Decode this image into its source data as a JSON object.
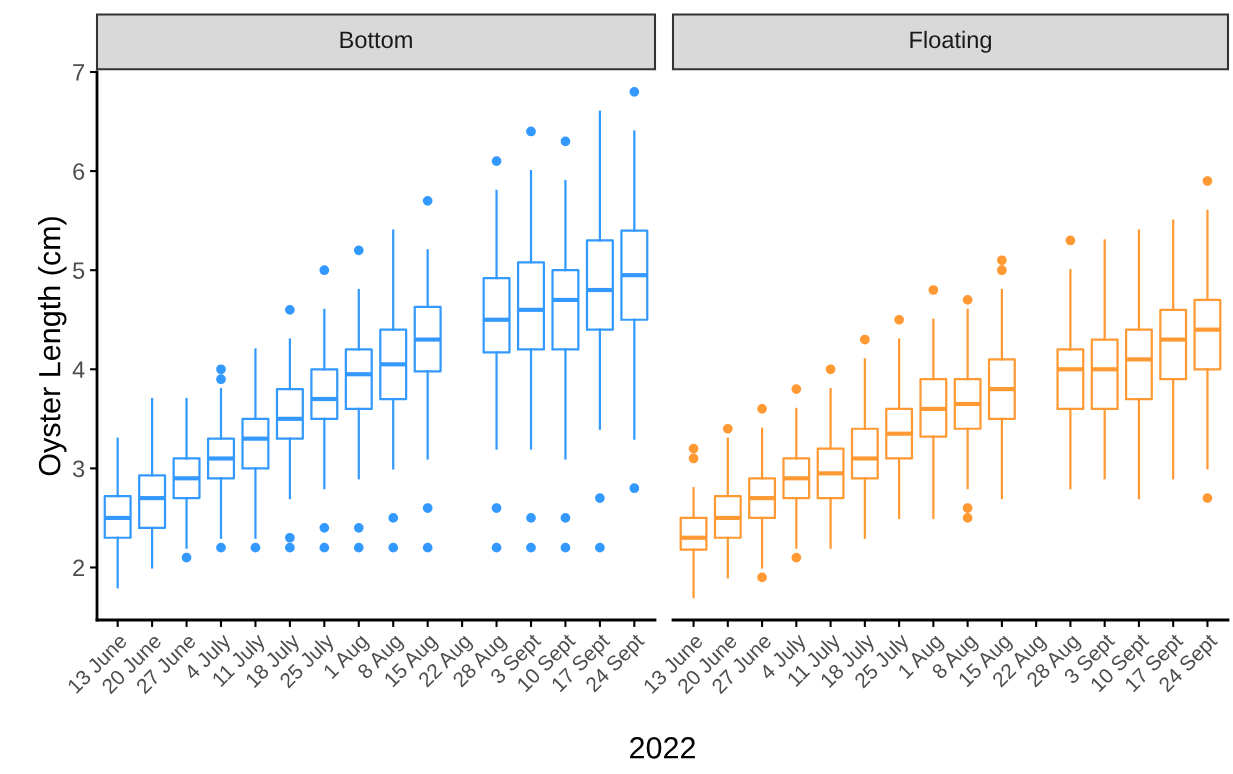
{
  "chart_data": [
    {
      "type": "box",
      "title": "Bottom",
      "ylabel": "Oyster Length (cm)",
      "xlabel": "2022",
      "categories": [
        "13 June",
        "20 June",
        "27 June",
        "4 July",
        "11 July",
        "18 July",
        "25 July",
        "1 Aug",
        "8 Aug",
        "15 Aug",
        "22 Aug",
        "28 Aug",
        "3 Sept",
        "10 Sept",
        "17 Sept",
        "24 Sept"
      ],
      "ylim": [
        1.47,
        7.0
      ],
      "yticks": [
        2,
        3,
        4,
        5,
        6,
        7
      ],
      "grid": false,
      "color": "#3399ff",
      "boxes": [
        {
          "low": 1.8,
          "q1": 2.3,
          "median": 2.5,
          "q3": 2.72,
          "high": 3.3
        },
        {
          "low": 2.0,
          "q1": 2.4,
          "median": 2.7,
          "q3": 2.93,
          "high": 3.7
        },
        {
          "low": 2.2,
          "q1": 2.7,
          "median": 2.9,
          "q3": 3.1,
          "high": 3.7,
          "outliers": [
            2.1
          ]
        },
        {
          "low": 2.3,
          "q1": 2.9,
          "median": 3.1,
          "q3": 3.3,
          "high": 3.8,
          "outliers": [
            4.0,
            3.9,
            2.2
          ]
        },
        {
          "low": 2.3,
          "q1": 3.0,
          "median": 3.3,
          "q3": 3.5,
          "high": 4.2,
          "outliers": [
            2.2
          ]
        },
        {
          "low": 2.7,
          "q1": 3.3,
          "median": 3.5,
          "q3": 3.8,
          "high": 4.3,
          "outliers": [
            4.6,
            2.3,
            2.2
          ]
        },
        {
          "low": 2.8,
          "q1": 3.5,
          "median": 3.7,
          "q3": 4.0,
          "high": 4.6,
          "outliers": [
            5.0,
            2.4,
            2.2
          ]
        },
        {
          "low": 2.9,
          "q1": 3.6,
          "median": 3.95,
          "q3": 4.2,
          "high": 4.8,
          "outliers": [
            5.2,
            2.4,
            2.2
          ]
        },
        {
          "low": 3.0,
          "q1": 3.7,
          "median": 4.05,
          "q3": 4.4,
          "high": 5.4,
          "outliers": [
            2.5,
            2.2
          ]
        },
        {
          "low": 3.1,
          "q1": 3.98,
          "median": 4.3,
          "q3": 4.63,
          "high": 5.2,
          "outliers": [
            5.7,
            2.6,
            2.2
          ]
        },
        null,
        {
          "low": 3.2,
          "q1": 4.17,
          "median": 4.5,
          "q3": 4.92,
          "high": 5.8,
          "outliers": [
            6.1,
            2.6,
            2.2
          ]
        },
        {
          "low": 3.2,
          "q1": 4.2,
          "median": 4.6,
          "q3": 5.08,
          "high": 6.0,
          "outliers": [
            6.4,
            2.5,
            2.2
          ]
        },
        {
          "low": 3.1,
          "q1": 4.2,
          "median": 4.7,
          "q3": 5.0,
          "high": 5.9,
          "outliers": [
            6.3,
            2.5,
            2.2
          ]
        },
        {
          "low": 3.4,
          "q1": 4.4,
          "median": 4.8,
          "q3": 5.3,
          "high": 6.6,
          "outliers": [
            2.7,
            2.2
          ]
        },
        {
          "low": 3.3,
          "q1": 4.5,
          "median": 4.95,
          "q3": 5.4,
          "high": 6.4,
          "outliers": [
            6.8,
            2.8
          ]
        }
      ]
    },
    {
      "type": "box",
      "title": "Floating",
      "tick_labels": "x",
      "categories": [
        "13 June",
        "20 June",
        "27 June",
        "4 July",
        "11 July",
        "18 July",
        "25 July",
        "1 Aug",
        "8 Aug",
        "15 Aug",
        "22 Aug",
        "28 Aug",
        "3 Sept",
        "10 Sept",
        "17 Sept",
        "24 Sept"
      ],
      "ylim": [
        1.47,
        7.0
      ],
      "grid": false,
      "color": "#ff9933",
      "boxes": [
        {
          "low": 1.7,
          "q1": 2.18,
          "median": 2.3,
          "q3": 2.5,
          "high": 2.8,
          "outliers": [
            3.2,
            3.1
          ]
        },
        {
          "low": 1.9,
          "q1": 2.3,
          "median": 2.5,
          "q3": 2.72,
          "high": 3.3,
          "outliers": [
            3.4
          ]
        },
        {
          "low": 2.0,
          "q1": 2.5,
          "median": 2.7,
          "q3": 2.9,
          "high": 3.4,
          "outliers": [
            3.6,
            1.9
          ]
        },
        {
          "low": 2.2,
          "q1": 2.7,
          "median": 2.9,
          "q3": 3.1,
          "high": 3.6,
          "outliers": [
            3.8,
            2.1
          ]
        },
        {
          "low": 2.2,
          "q1": 2.7,
          "median": 2.95,
          "q3": 3.2,
          "high": 3.8,
          "outliers": [
            4.0
          ]
        },
        {
          "low": 2.3,
          "q1": 2.9,
          "median": 3.1,
          "q3": 3.4,
          "high": 4.1,
          "outliers": [
            4.3
          ]
        },
        {
          "low": 2.5,
          "q1": 3.1,
          "median": 3.35,
          "q3": 3.6,
          "high": 4.3,
          "outliers": [
            4.5
          ]
        },
        {
          "low": 2.5,
          "q1": 3.32,
          "median": 3.6,
          "q3": 3.9,
          "high": 4.5,
          "outliers": [
            4.8
          ]
        },
        {
          "low": 2.8,
          "q1": 3.4,
          "median": 3.65,
          "q3": 3.9,
          "high": 4.6,
          "outliers": [
            4.7,
            2.6,
            2.5
          ]
        },
        {
          "low": 2.7,
          "q1": 3.5,
          "median": 3.8,
          "q3": 4.1,
          "high": 4.8,
          "outliers": [
            5.1,
            5.0
          ]
        },
        null,
        {
          "low": 2.8,
          "q1": 3.6,
          "median": 4.0,
          "q3": 4.2,
          "high": 5.0,
          "outliers": [
            5.3
          ]
        },
        {
          "low": 2.9,
          "q1": 3.6,
          "median": 4.0,
          "q3": 4.3,
          "high": 5.3
        },
        {
          "low": 2.7,
          "q1": 3.7,
          "median": 4.1,
          "q3": 4.4,
          "high": 5.4
        },
        {
          "low": 2.9,
          "q1": 3.9,
          "median": 4.3,
          "q3": 4.6,
          "high": 5.5
        },
        {
          "low": 3.0,
          "q1": 4.0,
          "median": 4.4,
          "q3": 4.7,
          "high": 5.6,
          "outliers": [
            5.9,
            2.7
          ]
        }
      ]
    }
  ]
}
